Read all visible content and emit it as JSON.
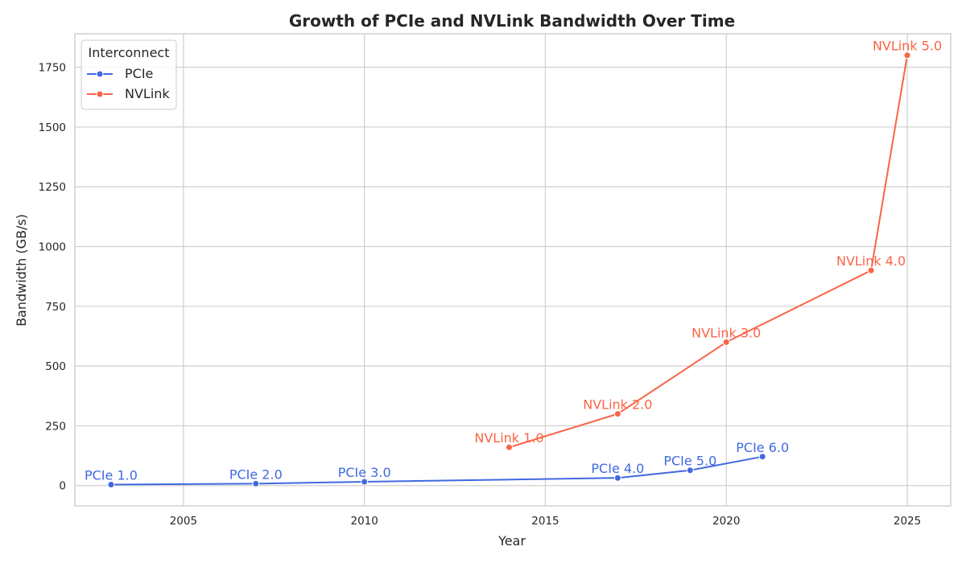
{
  "chart_data": {
    "type": "line",
    "title": "Growth of PCIe and NVLink Bandwidth Over Time",
    "xlabel": "Year",
    "ylabel": "Bandwidth (GB/s)",
    "xlim": [
      2002,
      2026.2
    ],
    "ylim": [
      -85,
      1890
    ],
    "xticks": [
      2005,
      2010,
      2015,
      2020,
      2025
    ],
    "yticks": [
      0,
      250,
      500,
      750,
      1000,
      1250,
      1500,
      1750
    ],
    "grid": true,
    "legend": {
      "title": "Interconnect",
      "position": "top-left"
    },
    "series": [
      {
        "name": "PCIe",
        "color": "#4169e1",
        "points": [
          {
            "x": 2003,
            "y": 4,
            "label": "PCIe 1.0"
          },
          {
            "x": 2007,
            "y": 8,
            "label": "PCIe 2.0"
          },
          {
            "x": 2010,
            "y": 16,
            "label": "PCIe 3.0"
          },
          {
            "x": 2017,
            "y": 32,
            "label": "PCIe 4.0"
          },
          {
            "x": 2019,
            "y": 64,
            "label": "PCIe 5.0"
          },
          {
            "x": 2021,
            "y": 121,
            "label": "PCIe 6.0"
          }
        ]
      },
      {
        "name": "NVLink",
        "color": "#fa6446",
        "points": [
          {
            "x": 2014,
            "y": 160,
            "label": "NVLink 1.0"
          },
          {
            "x": 2017,
            "y": 300,
            "label": "NVLink 2.0"
          },
          {
            "x": 2020,
            "y": 600,
            "label": "NVLink 3.0"
          },
          {
            "x": 2024,
            "y": 900,
            "label": "NVLink 4.0"
          },
          {
            "x": 2025,
            "y": 1800,
            "label": "NVLink 5.0"
          }
        ]
      }
    ]
  }
}
